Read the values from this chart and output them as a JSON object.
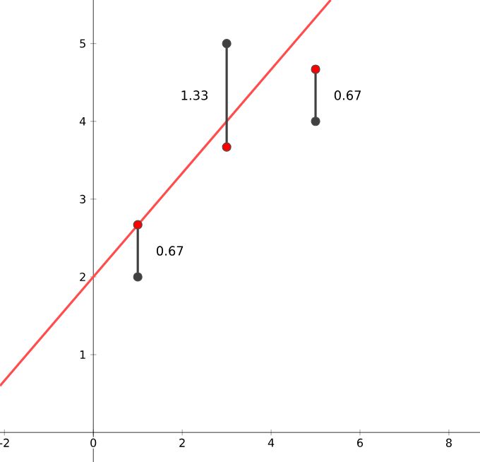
{
  "chart_data": {
    "type": "scatter",
    "xlim": [
      -2.1,
      8.7
    ],
    "ylim": [
      -0.38,
      5.56
    ],
    "xticks": [
      -2,
      0,
      2,
      4,
      6,
      8
    ],
    "yticks": [
      1,
      2,
      3,
      4,
      5
    ],
    "series": [
      {
        "type": "line",
        "color": "#ff4c4c",
        "x": [
          -2.1,
          5.34
        ],
        "values": [
          0.6,
          5.56
        ],
        "marker": "none"
      },
      {
        "type": "line",
        "color": "#404040",
        "x": [
          1,
          1
        ],
        "values": [
          2,
          2.67
        ],
        "marker": "none"
      },
      {
        "type": "line",
        "color": "#404040",
        "x": [
          3,
          3
        ],
        "values": [
          5,
          3.67
        ],
        "marker": "none"
      },
      {
        "type": "line",
        "color": "#404040",
        "x": [
          5,
          5
        ],
        "values": [
          4,
          4.67
        ],
        "marker": "none"
      },
      {
        "color": "#404040",
        "x": [
          1,
          3,
          5
        ],
        "values": [
          2,
          5,
          4
        ],
        "marker": "circle"
      },
      {
        "color": "#ff0000",
        "x": [
          1,
          3,
          5
        ],
        "values": [
          2.67,
          3.67,
          4.67
        ],
        "marker": "circle"
      }
    ],
    "annotations": [
      {
        "text": "0.67",
        "x": 1,
        "y": 2.335
      },
      {
        "text": "1.33",
        "x": 3,
        "y": 4.335
      },
      {
        "text": "0.67",
        "x": 5,
        "y": 4.335
      }
    ]
  }
}
